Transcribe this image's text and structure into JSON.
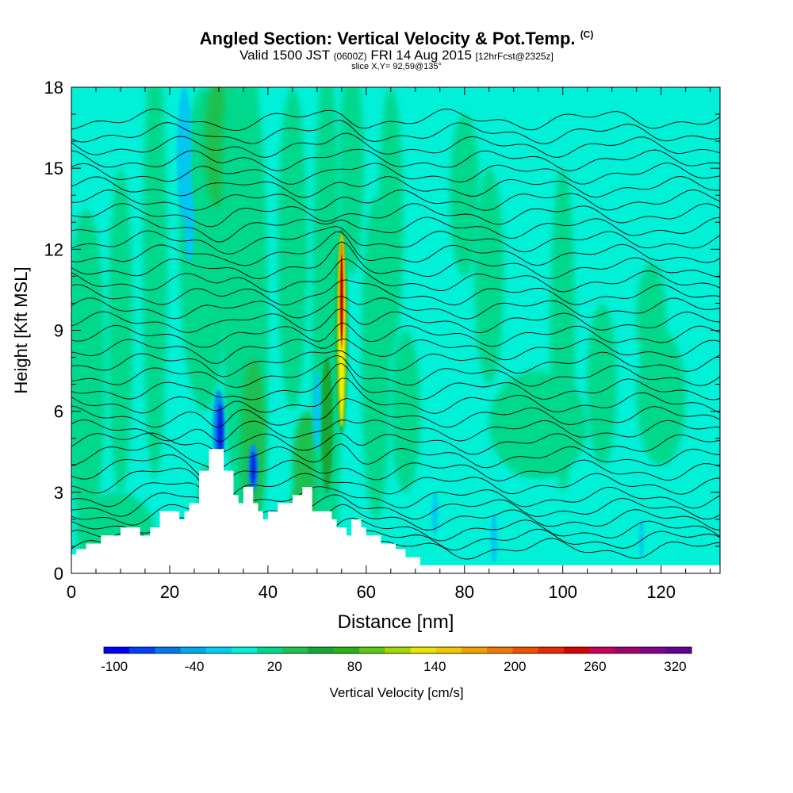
{
  "header": {
    "title": "Angled Section: Vertical Velocity & Pot.Temp.",
    "title_unit": "(C)",
    "valid_prefix": "Valid 1500 JST",
    "valid_utc": "(0600Z)",
    "valid_date": "FRI 14 Aug 2015",
    "forecast": "[12hrFcst@2325z]",
    "slice": "slice X,Y= 92,59@135°"
  },
  "colors": {
    "background": "#00f0d8",
    "shade_green_light": "#00d88c",
    "shade_green_mid": "#1ec050",
    "shade_green_dark": "#14a832",
    "shade_blue_light": "#00c8f0",
    "shade_blue_mid": "#0090f0",
    "shade_blue_dark": "#0020e0",
    "core_yellow": "#f0f000",
    "core_orange": "#f08000",
    "core_red": "#c80000",
    "contour": "#000000",
    "terrain": "#ffffff"
  },
  "chart_data": {
    "type": "heatmap",
    "title": "Angled Section: Vertical Velocity & Pot.Temp.",
    "xlabel": "Distance [nm]",
    "ylabel": "Height [Kft MSL]",
    "xlim": [
      0,
      132
    ],
    "ylim": [
      0,
      18
    ],
    "x_ticks": [
      "0",
      "20",
      "40",
      "60",
      "80",
      "100",
      "120"
    ],
    "x_tick_values": [
      0,
      20,
      40,
      60,
      80,
      100,
      120
    ],
    "y_ticks": [
      "0",
      "3",
      "6",
      "9",
      "12",
      "15",
      "18"
    ],
    "y_tick_values": [
      0,
      3,
      6,
      9,
      12,
      15,
      18
    ],
    "colorbar": {
      "label": "Vertical Velocity [cm/s]",
      "tick_labels": [
        "-100",
        "-40",
        "20",
        "80",
        "140",
        "200",
        "260",
        "320"
      ],
      "tick_values": [
        -100,
        -40,
        20,
        80,
        140,
        200,
        260,
        320
      ],
      "min": -100,
      "max": 340,
      "colors": [
        "#0000ff",
        "#0040f8",
        "#0078f0",
        "#00a8f0",
        "#00d0f0",
        "#00f0d8",
        "#00d88c",
        "#1ec050",
        "#14a832",
        "#28b414",
        "#5ac814",
        "#a0d800",
        "#e6e600",
        "#f0c800",
        "#f0a000",
        "#f07800",
        "#f05000",
        "#e82800",
        "#d80000",
        "#c8005a",
        "#a0006e",
        "#82008c",
        "#640096"
      ]
    },
    "terrain_profile": {
      "x": [
        0,
        1,
        1,
        3,
        3,
        6,
        6,
        10,
        10,
        14,
        14,
        16,
        16,
        18,
        18,
        22,
        22,
        23,
        23,
        24,
        24,
        26,
        26,
        28,
        28,
        31,
        31,
        33,
        33,
        34,
        34,
        35,
        35,
        37,
        37,
        38,
        38,
        39,
        39,
        40,
        40,
        42,
        42,
        45,
        45,
        47,
        47,
        49,
        49,
        53,
        53,
        54,
        54,
        56,
        56,
        57,
        57,
        59,
        59,
        60,
        60,
        63,
        63,
        66,
        66,
        68,
        68,
        71,
        71,
        132
      ],
      "y": [
        0.7,
        0.7,
        0.9,
        0.9,
        1.1,
        1.1,
        1.4,
        1.4,
        1.7,
        1.7,
        1.4,
        1.4,
        1.7,
        1.7,
        2.3,
        2.3,
        2.0,
        2.0,
        2.3,
        2.3,
        2.6,
        2.6,
        3.8,
        3.8,
        4.6,
        4.6,
        3.8,
        3.8,
        2.9,
        2.9,
        2.6,
        2.6,
        3.2,
        3.2,
        2.6,
        2.6,
        2.3,
        2.3,
        2.0,
        2.0,
        2.3,
        2.3,
        2.6,
        2.6,
        2.9,
        2.9,
        3.2,
        3.2,
        2.3,
        2.3,
        2.0,
        2.0,
        1.7,
        1.7,
        1.4,
        1.4,
        2.0,
        2.0,
        1.7,
        1.7,
        1.4,
        1.4,
        1.1,
        1.1,
        0.9,
        0.9,
        0.6,
        0.6,
        0.3,
        0.3
      ]
    },
    "vertical_velocity_features": [
      {
        "kind": "updraft_core",
        "x": 55.0,
        "y_range": [
          5.5,
          12.6
        ],
        "peak_value": 260
      },
      {
        "kind": "updraft",
        "x": 52.0,
        "y_range": [
          3.5,
          8.5
        ],
        "peak_value": 60
      },
      {
        "kind": "updraft",
        "x": 36.0,
        "y_range": [
          0.5,
          18.0
        ],
        "peak_value": 40
      },
      {
        "kind": "updraft",
        "x": 100.0,
        "y_range": [
          0.5,
          14.0
        ],
        "peak_value": 30
      },
      {
        "kind": "downdraft",
        "x": 30.0,
        "y_range": [
          4.2,
          7.0
        ],
        "peak_value": -100
      },
      {
        "kind": "downdraft",
        "x": 37.0,
        "y_range": [
          3.3,
          4.5
        ],
        "peak_value": -100
      },
      {
        "kind": "downdraft",
        "x": 24.0,
        "y_range": [
          14.0,
          18.0
        ],
        "peak_value": -40
      }
    ],
    "isentropes": {
      "count": 34,
      "base_values": [
        0.9,
        1.25,
        1.6,
        2.0,
        2.4,
        2.8,
        3.3,
        3.8,
        4.3,
        4.8,
        5.3,
        5.8,
        6.3,
        6.8,
        7.3,
        7.8,
        8.3,
        8.8,
        9.3,
        9.8,
        10.3,
        10.8,
        11.3,
        11.8,
        12.3,
        12.8,
        13.3,
        13.8,
        14.3,
        14.8,
        15.3,
        15.8,
        16.3,
        16.8
      ]
    }
  }
}
